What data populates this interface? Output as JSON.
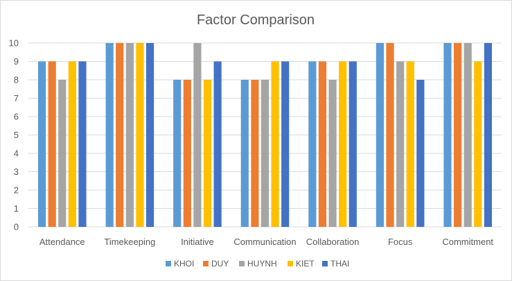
{
  "chart_data": {
    "type": "bar",
    "title": "Factor Comparison",
    "xlabel": "",
    "ylabel": "",
    "ylim": [
      0,
      10
    ],
    "yticks": [
      0,
      1,
      2,
      3,
      4,
      5,
      6,
      7,
      8,
      9,
      10
    ],
    "grid": true,
    "legend_position": "bottom",
    "categories": [
      "Attendance",
      "Timekeeping",
      "Initiative",
      "Communication",
      "Collaboration",
      "Focus",
      "Commitment"
    ],
    "series": [
      {
        "name": "KHOI",
        "color": "#5b9bd5",
        "values": [
          9,
          10,
          8,
          8,
          9,
          10,
          10
        ]
      },
      {
        "name": "DUY",
        "color": "#ed7d31",
        "values": [
          9,
          10,
          8,
          8,
          9,
          10,
          10
        ]
      },
      {
        "name": "HUYNH",
        "color": "#a5a5a5",
        "values": [
          8,
          10,
          10,
          8,
          8,
          9,
          10
        ]
      },
      {
        "name": "KIET",
        "color": "#ffc000",
        "values": [
          9,
          10,
          8,
          9,
          9,
          9,
          9
        ]
      },
      {
        "name": "THAI",
        "color": "#4472c4",
        "values": [
          9,
          10,
          9,
          9,
          9,
          8,
          10
        ]
      }
    ]
  }
}
